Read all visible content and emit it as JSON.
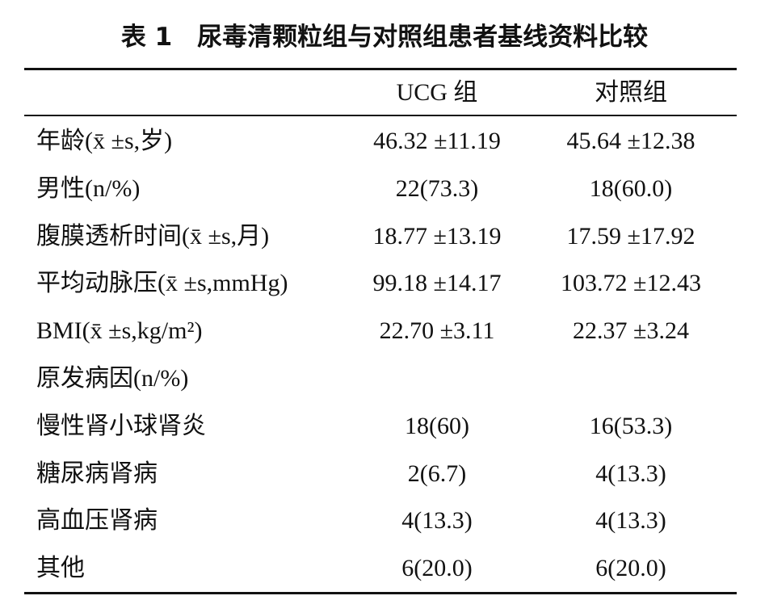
{
  "title": "表 1　尿毒清颗粒组与对照组患者基线资料比较",
  "table": {
    "columns": [
      "UCG 组",
      "对照组"
    ],
    "rows": [
      [
        "年龄(x̄ ±s,岁)",
        "46.32 ±11.19",
        "45.64 ±12.38"
      ],
      [
        "男性(n/%)",
        "22(73.3)",
        "18(60.0)"
      ],
      [
        "腹膜透析时间(x̄ ±s,月)",
        "18.77 ±13.19",
        "17.59 ±17.92"
      ],
      [
        "平均动脉压(x̄ ±s,mmHg)",
        "99.18 ±14.17",
        "103.72 ±12.43"
      ],
      [
        "BMI(x̄ ±s,kg/m²)",
        "22.70 ±3.11",
        "22.37 ±3.24"
      ],
      [
        "原发病因(n/%)"
      ],
      [
        "慢性肾小球肾炎",
        "18(60)",
        "16(53.3)"
      ],
      [
        "糖尿病肾病",
        "2(6.7)",
        "4(13.3)"
      ],
      [
        "高血压肾病",
        "4(13.3)",
        "4(13.3)"
      ],
      [
        "其他",
        "6(20.0)",
        "6(20.0)"
      ]
    ]
  }
}
